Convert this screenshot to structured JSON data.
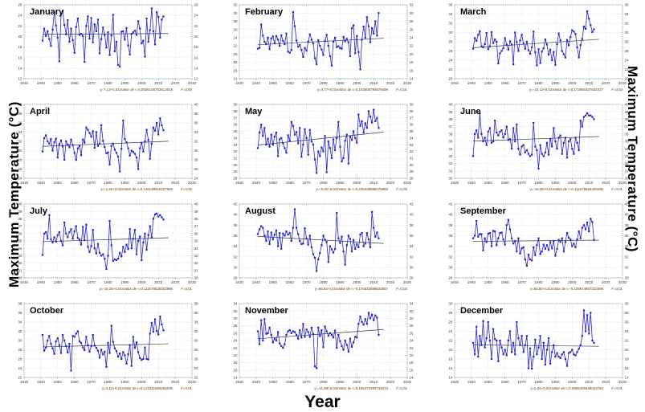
{
  "labels": {
    "ylabel_left": "Maximum Temperature  (°C)",
    "ylabel_right": "Maximum Temperature  (°C)",
    "xlabel": "Year"
  },
  "colors": {
    "series": "#2323cc",
    "trend": "#3a3a3a",
    "caption": "#663300",
    "grid": "#b9b9cf",
    "frame": "#8a8a9a",
    "tick_text": "#3a3a3a"
  },
  "chart_data": [
    {
      "type": "line",
      "month": "January",
      "xlim": [
        1930,
        2030
      ],
      "xstep": 10,
      "ylim": [
        12,
        26
      ],
      "ystep": 2,
      "x_start": 1941,
      "caption_eq": "y=7,13+0,01xValor de r=0,0526106753613618",
      "caption_r2": "r²=0,00",
      "values": [
        19.2,
        21.5,
        20.1,
        21.0,
        19.5,
        18.2,
        21.3,
        24.6,
        22.1,
        19.8,
        15.3,
        24.3,
        24.8,
        22.2,
        20.4,
        23.1,
        19.0,
        21.5,
        19.3,
        16.9,
        21.8,
        23.4,
        20.3,
        20.5,
        20.1,
        15.2,
        22.0,
        23.8,
        19.6,
        23.5,
        18.9,
        22.3,
        21.0,
        23.2,
        16.8,
        19.5,
        21.7,
        20.3,
        17.9,
        20.8,
        16.5,
        20.2,
        24.1,
        17.2,
        19.0,
        14.6,
        14.3,
        20.9,
        21.0,
        19.4,
        21.6,
        18.3,
        16.6,
        20.5,
        20.8,
        21.1,
        20.3,
        22.9,
        21.5,
        18.7,
        19.2,
        16.2,
        23.4,
        19.0,
        21.2,
        25.3,
        21.0,
        18.5,
        24.6,
        23.7,
        19.8,
        23.2,
        23.8
      ]
    },
    {
      "type": "line",
      "month": "February",
      "xlim": [
        1930,
        2030
      ],
      "xstep": 10,
      "ylim": [
        14,
        32
      ],
      "ystep": 2,
      "x_start": 1941,
      "caption_eq": "y=4,77+0,01xValor de r=0,103808794879499",
      "caption_r2": "r²=0,01",
      "values": [
        21.3,
        21.5,
        27.2,
        24.5,
        23.0,
        22.4,
        24.0,
        21.2,
        23.8,
        24.3,
        22.6,
        24.4,
        23.5,
        22.0,
        24.6,
        23.2,
        22.4,
        25.0,
        20.6,
        20.3,
        21.0,
        30.2,
        26.8,
        23.3,
        21.8,
        22.2,
        21.0,
        19.3,
        21.5,
        20.8,
        23.0,
        24.8,
        23.5,
        22.6,
        19.0,
        17.5,
        23.4,
        22.0,
        21.1,
        19.8,
        23.2,
        24.7,
        22.0,
        19.5,
        17.2,
        23.0,
        24.0,
        21.7,
        21.9,
        21.5,
        21.3,
        24.2,
        23.1,
        23.7,
        22.9,
        19.5,
        26.3,
        27.0,
        20.2,
        24.4,
        20.5,
        16.3,
        23.5,
        26.7,
        24.0,
        29.0,
        26.8,
        22.9,
        26.3,
        25.0,
        28.0,
        24.5,
        30.0
      ]
    },
    {
      "type": "line",
      "month": "March",
      "xlim": [
        1930,
        2030
      ],
      "xstep": 10,
      "ylim": [
        20,
        36
      ],
      "ystep": 2,
      "x_start": 1941,
      "caption_eq": "y=-10,13+0,02xValor de r=0,173691937632437",
      "caption_r2": "r²=0,03",
      "values": [
        26.5,
        28.8,
        28.2,
        29.5,
        30.3,
        27.0,
        26.8,
        27.5,
        29.9,
        26.4,
        27.0,
        30.1,
        27.7,
        28.5,
        28.0,
        23.3,
        25.5,
        26.0,
        26.6,
        28.8,
        27.4,
        26.3,
        28.1,
        27.4,
        23.1,
        30.0,
        27.9,
        26.0,
        28.3,
        29.5,
        27.6,
        26.5,
        28.0,
        26.2,
        25.4,
        26.8,
        30.2,
        25.7,
        22.9,
        26.4,
        23.4,
        25.9,
        26.6,
        28.5,
        27.4,
        25.2,
        26.3,
        24.0,
        25.8,
        23.0,
        27.5,
        29.8,
        28.3,
        26.0,
        25.3,
        24.6,
        28.4,
        27.2,
        29.0,
        30.5,
        30.2,
        29.7,
        26.8,
        24.6,
        27.3,
        28.6,
        31.3,
        30.8,
        34.6,
        33.0,
        31.6,
        30.1,
        30.7
      ]
    },
    {
      "type": "line",
      "month": "April",
      "xlim": [
        1930,
        2030
      ],
      "xstep": 10,
      "ylim": [
        24,
        40
      ],
      "ystep": 2,
      "x_start": 1941,
      "caption_eq": "y=-1,26+0,02xValor de r=0,146138916327666",
      "caption_r2": "r²=0,02",
      "values": [
        29.8,
        32.7,
        33.3,
        32.0,
        31.5,
        32.5,
        30.0,
        31.8,
        32.6,
        28.5,
        31.4,
        32.2,
        30.9,
        28.0,
        32.0,
        31.3,
        30.7,
        32.4,
        31.2,
        29.5,
        28.0,
        30.5,
        31.0,
        29.0,
        32.4,
        31.7,
        35.0,
        34.5,
        33.8,
        33.0,
        34.2,
        30.6,
        34.0,
        31.0,
        31.5,
        35.5,
        32.1,
        30.8,
        29.4,
        29.6,
        27.0,
        31.0,
        31.5,
        30.2,
        29.5,
        28.7,
        25.5,
        30.4,
        36.5,
        32.5,
        31.8,
        30.5,
        28.9,
        30.0,
        29.7,
        29.3,
        28.5,
        26.0,
        30.5,
        31.7,
        29.8,
        32.0,
        34.5,
        32.3,
        28.2,
        31.5,
        35.0,
        34.3,
        36.0,
        33.5,
        37.0,
        35.5,
        34.4
      ]
    },
    {
      "type": "line",
      "month": "May",
      "xlim": [
        1930,
        2030
      ],
      "xstep": 10,
      "ylim": [
        28,
        39
      ],
      "ystep": 1,
      "x_start": 1941,
      "caption_eq": "y=-6,40+0,02xValor de r=0,225438888475969",
      "caption_r2": "r²=0,05",
      "values": [
        32.5,
        34.8,
        36.0,
        34.3,
        35.5,
        33.0,
        33.9,
        32.7,
        34.5,
        33.0,
        34.2,
        34.8,
        31.3,
        33.8,
        34.0,
        33.2,
        32.5,
        31.8,
        34.4,
        33.6,
        36.4,
        35.8,
        34.5,
        34.9,
        33.2,
        35.5,
        31.2,
        33.0,
        35.3,
        34.0,
        31.5,
        35.2,
        33.5,
        33.0,
        30.8,
        28.8,
        32.0,
        31.3,
        32.6,
        32.0,
        34.3,
        28.9,
        33.5,
        32.5,
        31.0,
        33.8,
        32.2,
        34.0,
        36.4,
        32.7,
        30.5,
        31.0,
        33.6,
        34.5,
        30.2,
        34.2,
        33.7,
        35.0,
        34.0,
        33.3,
        37.5,
        35.8,
        36.5,
        34.8,
        36.2,
        35.5,
        38.0,
        37.2,
        36.3,
        38.2,
        36.5,
        37.0,
        35.5
      ]
    },
    {
      "type": "line",
      "month": "June",
      "xlim": [
        1930,
        2030
      ],
      "xstep": 10,
      "ylim": [
        30,
        40
      ],
      "ystep": 1,
      "x_start": 1941,
      "caption_eq": "y=-16,25+0,01xValor de r=0,111676626420296",
      "caption_r2": "r²=0,01",
      "values": [
        33.0,
        36.0,
        36.5,
        35.5,
        38.8,
        36.0,
        35.0,
        35.5,
        34.5,
        36.3,
        36.8,
        34.8,
        35.0,
        37.8,
        36.2,
        35.8,
        36.3,
        36.5,
        35.5,
        36.0,
        37.0,
        35.2,
        35.3,
        34.0,
        36.8,
        35.0,
        37.3,
        34.0,
        33.2,
        34.3,
        34.5,
        33.5,
        33.8,
        33.3,
        33.0,
        33.2,
        37.5,
        34.3,
        33.8,
        31.3,
        34.5,
        33.3,
        33.0,
        33.5,
        34.8,
        33.2,
        35.3,
        34.3,
        36.8,
        35.0,
        34.0,
        35.5,
        35.8,
        33.3,
        34.8,
        35.5,
        32.8,
        35.0,
        35.3,
        34.0,
        33.3,
        35.5,
        34.8,
        33.8,
        37.8,
        37.0,
        38.3,
        38.5,
        38.8,
        38.5,
        38.5,
        38.3,
        38.0
      ]
    },
    {
      "type": "line",
      "month": "July",
      "xlim": [
        1930,
        2030
      ],
      "xstep": 10,
      "ylim": [
        30,
        40
      ],
      "ystep": 1,
      "x_start": 1941,
      "caption_eq": "y=-16,26+0,01xValor de r=0,111676526202986",
      "caption_r2": "r²=0,01",
      "values": [
        33.1,
        36.0,
        36.2,
        35.3,
        38.5,
        35.2,
        34.8,
        35.5,
        34.9,
        35.8,
        36.2,
        35.0,
        34.4,
        37.5,
        36.0,
        35.5,
        36.2,
        36.6,
        35.3,
        36.3,
        37.0,
        35.4,
        35.2,
        34.5,
        36.9,
        35.1,
        37.2,
        34.2,
        33.5,
        34.3,
        36.5,
        34.0,
        33.3,
        34.6,
        33.4,
        33.0,
        33.2,
        32.6,
        31.2,
        33.0,
        37.7,
        34.4,
        32.3,
        32.5,
        32.4,
        32.6,
        33.4,
        32.9,
        34.2,
        33.5,
        34.5,
        33.9,
        36.6,
        34.0,
        35.3,
        36.5,
        33.2,
        35.0,
        35.6,
        32.4,
        34.8,
        36.0,
        33.8,
        35.8,
        37.0,
        35.5,
        38.0,
        38.6,
        38.7,
        38.3,
        38.5,
        38.2,
        37.9
      ]
    },
    {
      "type": "line",
      "month": "August",
      "xlim": [
        1930,
        2030
      ],
      "xstep": 10,
      "ylim": [
        28,
        42
      ],
      "ystep": 2,
      "x_start": 1941,
      "caption_eq": "y=66,64-0,02xValor de r=-0,175532888633857",
      "caption_r2": "r²=0,03",
      "values": [
        36.3,
        37.2,
        37.8,
        37.5,
        36.0,
        35.0,
        36.8,
        34.4,
        36.6,
        35.3,
        36.2,
        37.0,
        34.0,
        36.5,
        33.5,
        36.4,
        36.0,
        36.8,
        36.2,
        36.5,
        35.0,
        37.5,
        41.0,
        37.5,
        36.3,
        35.0,
        34.4,
        34.5,
        37.4,
        35.5,
        34.3,
        36.0,
        33.8,
        32.5,
        31.8,
        29.3,
        31.5,
        32.7,
        34.2,
        36.0,
        35.2,
        34.8,
        31.0,
        34.0,
        33.4,
        32.8,
        33.5,
        40.3,
        35.5,
        34.6,
        35.8,
        33.0,
        30.5,
        34.2,
        36.0,
        35.4,
        33.0,
        35.2,
        33.5,
        34.4,
        33.8,
        36.2,
        36.5,
        34.0,
        34.5,
        36.5,
        35.3,
        33.8,
        40.5,
        37.5,
        35.8,
        36.6,
        35.5
      ]
    },
    {
      "type": "line",
      "month": "September",
      "xlim": [
        1930,
        2030
      ],
      "xstep": 10,
      "ylim": [
        28,
        42
      ],
      "ystep": 2,
      "x_start": 1941,
      "caption_eq": "y=55,50-0,01xValor de r=-0,109674667222596",
      "caption_r2": "r²=0,01",
      "values": [
        35.5,
        36.0,
        38.8,
        35.8,
        36.3,
        36.3,
        33.2,
        35.5,
        34.8,
        36.4,
        36.5,
        34.0,
        36.9,
        36.8,
        34.2,
        35.5,
        36.5,
        36.6,
        35.3,
        34.3,
        38.0,
        39.0,
        37.2,
        35.5,
        34.5,
        35.0,
        33.0,
        35.5,
        32.6,
        33.6,
        33.8,
        31.5,
        30.3,
        32.4,
        31.5,
        31.3,
        33.8,
        32.3,
        34.2,
        35.5,
        32.5,
        33.0,
        34.3,
        33.5,
        34.2,
        33.3,
        34.8,
        33.6,
        35.0,
        32.2,
        33.5,
        35.2,
        34.8,
        35.5,
        33.0,
        34.8,
        36.5,
        35.6,
        35.3,
        34.0,
        34.5,
        33.8,
        35.3,
        36.8,
        35.5,
        37.5,
        38.0,
        37.2,
        38.5,
        36.8,
        39.2,
        38.6,
        35.2
      ]
    },
    {
      "type": "line",
      "month": "October",
      "xlim": [
        1930,
        2030
      ],
      "xstep": 10,
      "ylim": [
        22,
        38
      ],
      "ystep": 2,
      "x_start": 1941,
      "caption_eq": "y=2,12+0,01xValor de r=0,122311556262036",
      "caption_r2": "r²=0,01",
      "values": [
        31.2,
        27.8,
        28.5,
        30.0,
        31.0,
        29.3,
        28.3,
        27.1,
        29.8,
        30.5,
        29.0,
        27.3,
        31.2,
        30.0,
        28.8,
        27.4,
        29.3,
        23.5,
        31.0,
        30.8,
        31.5,
        32.0,
        29.8,
        29.5,
        28.5,
        27.9,
        30.8,
        29.0,
        27.6,
        28.8,
        31.2,
        28.9,
        28.4,
        27.8,
        26.3,
        28.0,
        27.0,
        27.6,
        24.3,
        29.5,
        27.3,
        33.2,
        29.7,
        28.3,
        27.7,
        26.5,
        27.2,
        26.0,
        27.5,
        26.8,
        25.0,
        27.0,
        29.0,
        24.5,
        30.8,
        28.4,
        29.6,
        27.5,
        26.2,
        25.8,
        26.0,
        28.5,
        26.0,
        25.9,
        31.5,
        33.8,
        31.9,
        34.6,
        32.1,
        31.3,
        35.2,
        33.5,
        32.2
      ]
    },
    {
      "type": "line",
      "month": "November",
      "xlim": [
        1930,
        2030
      ],
      "xstep": 10,
      "ylim": [
        14,
        34
      ],
      "ystep": 2,
      "x_start": 1941,
      "caption_eq": "y=-11,88+0,03xValor de r=0,155473390734073",
      "caption_r2": "r²=0,02",
      "values": [
        26.5,
        23.0,
        29.5,
        24.0,
        29.8,
        25.8,
        26.0,
        27.5,
        25.5,
        23.5,
        24.5,
        24.0,
        26.3,
        23.2,
        22.5,
        22.0,
        23.0,
        25.5,
        26.5,
        26.8,
        26.0,
        26.5,
        26.3,
        25.5,
        24.5,
        26.8,
        24.8,
        28.5,
        25.0,
        27.0,
        26.3,
        25.0,
        27.5,
        25.8,
        17.0,
        16.5,
        27.5,
        25.2,
        26.8,
        22.2,
        27.8,
        26.5,
        25.3,
        26.0,
        25.5,
        24.8,
        26.7,
        22.0,
        25.5,
        23.8,
        22.5,
        21.5,
        24.0,
        22.8,
        21.0,
        24.5,
        22.3,
        23.5,
        25.0,
        24.8,
        28.5,
        30.5,
        29.0,
        28.3,
        29.8,
        28.5,
        31.5,
        30.0,
        31.0,
        29.5,
        30.8,
        30.2,
        25.5
      ]
    },
    {
      "type": "line",
      "month": "December",
      "xlim": [
        1930,
        2030
      ],
      "xstep": 10,
      "ylim": [
        14,
        30
      ],
      "ystep": 2,
      "x_start": 1941,
      "caption_eq": "y=0,26+0,01xValor de r=0,0865459448032762",
      "caption_r2": "r²=0,01",
      "values": [
        21.5,
        19.0,
        25.0,
        18.5,
        23.0,
        21.0,
        26.2,
        20.5,
        22.5,
        26.0,
        22.0,
        18.0,
        24.5,
        22.3,
        22.0,
        17.5,
        22.0,
        20.5,
        19.0,
        20.0,
        18.8,
        22.0,
        24.0,
        19.5,
        21.5,
        19.0,
        26.0,
        22.5,
        21.0,
        23.0,
        19.5,
        21.0,
        23.0,
        16.0,
        20.3,
        15.9,
        18.5,
        22.2,
        19.0,
        20.5,
        23.0,
        18.0,
        21.5,
        16.8,
        20.0,
        22.5,
        17.0,
        19.5,
        21.0,
        18.5,
        19.3,
        18.5,
        18.2,
        19.0,
        19.5,
        18.0,
        16.5,
        19.3,
        19.5,
        20.0,
        19.0,
        18.8,
        19.5,
        20.2,
        21.0,
        23.0,
        28.5,
        24.0,
        27.5,
        23.5,
        28.0,
        22.0,
        21.5
      ]
    }
  ]
}
